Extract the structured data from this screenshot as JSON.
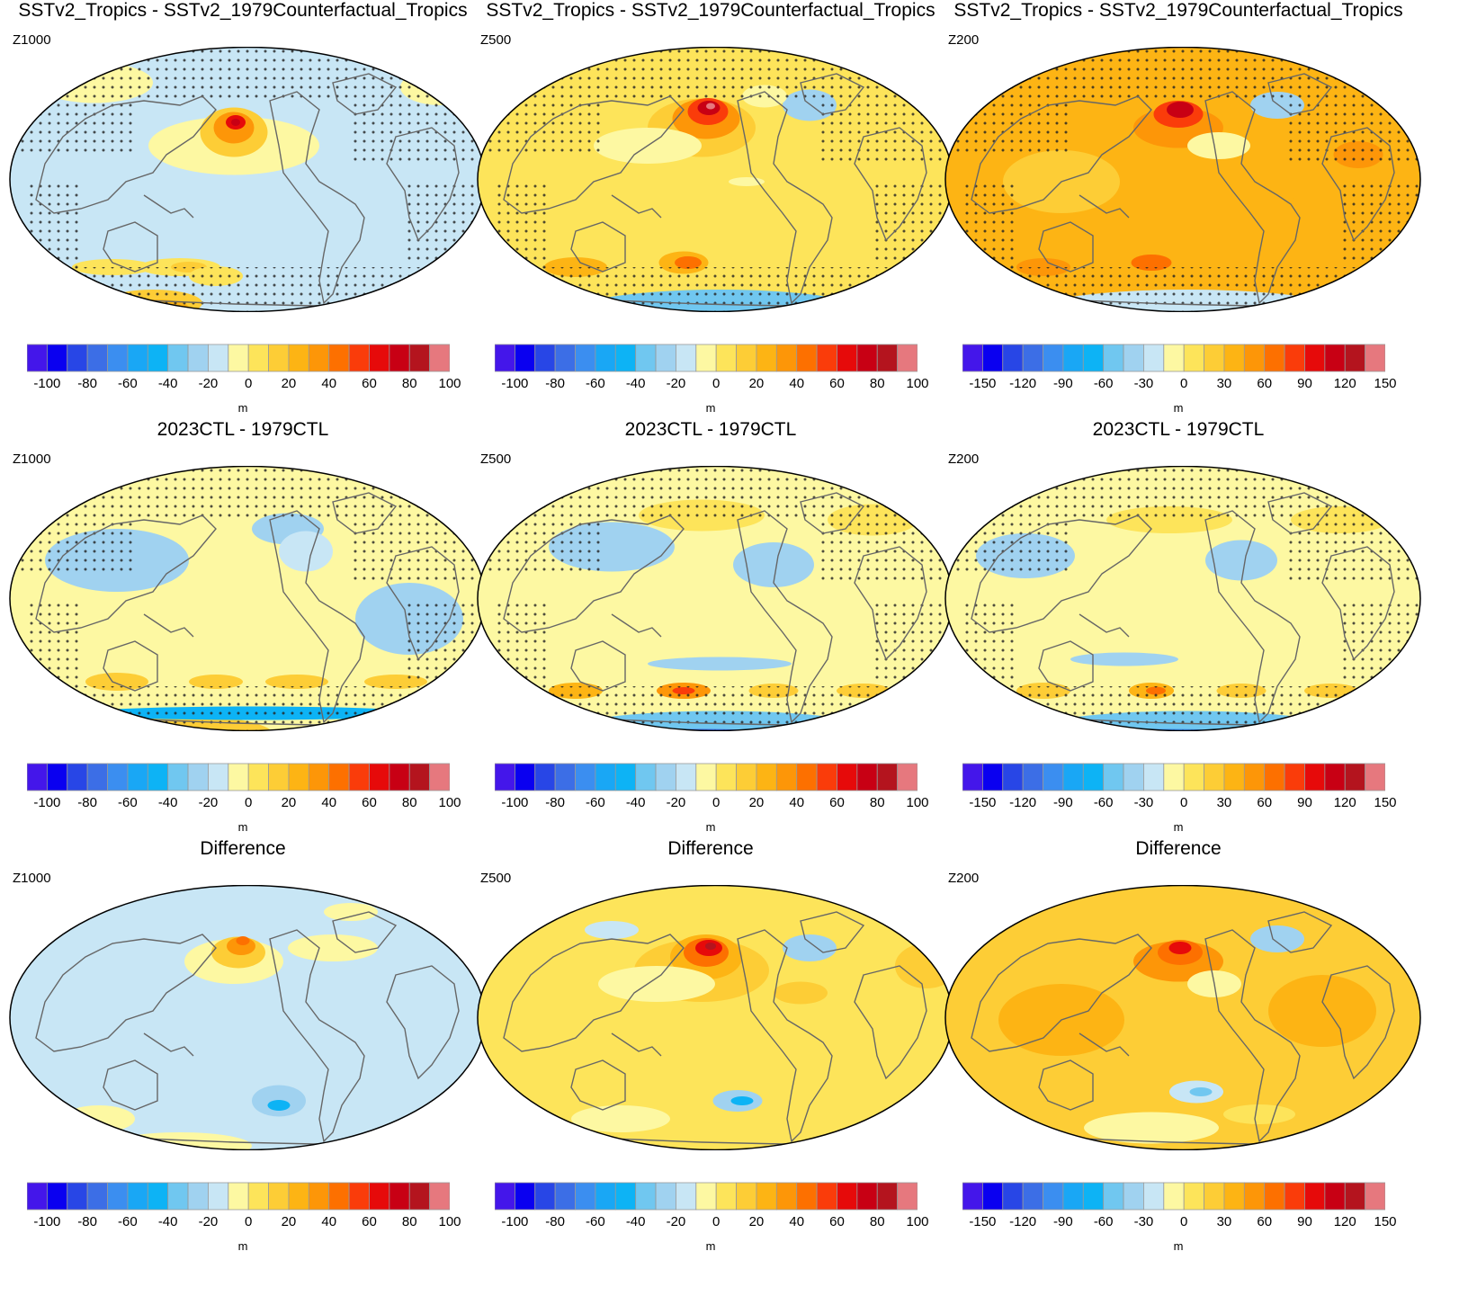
{
  "figure": {
    "panels": [
      {
        "title": "SSTv2_Tropics - SSTv2_1979Counterfactual_Tropics",
        "level": "Z1000",
        "scale": "z100",
        "pattern": "sst_z1000",
        "stipple": true
      },
      {
        "title": "SSTv2_Tropics - SSTv2_1979Counterfactual_Tropics",
        "level": "Z500",
        "scale": "z100",
        "pattern": "sst_z500",
        "stipple": true
      },
      {
        "title": "SSTv2_Tropics - SSTv2_1979Counterfactual_Tropics",
        "level": "Z200",
        "scale": "z150",
        "pattern": "sst_z200",
        "stipple": true
      },
      {
        "title": "2023CTL - 1979CTL",
        "level": "Z1000",
        "scale": "z100",
        "pattern": "ctl_z1000",
        "stipple": true
      },
      {
        "title": "2023CTL - 1979CTL",
        "level": "Z500",
        "scale": "z100",
        "pattern": "ctl_z500",
        "stipple": true
      },
      {
        "title": "2023CTL - 1979CTL",
        "level": "Z200",
        "scale": "z150",
        "pattern": "ctl_z200",
        "stipple": true
      },
      {
        "title": "Difference",
        "level": "Z1000",
        "scale": "z100",
        "pattern": "diff_z1000",
        "stipple": false
      },
      {
        "title": "Difference",
        "level": "Z500",
        "scale": "z100",
        "pattern": "diff_z500",
        "stipple": false
      },
      {
        "title": "Difference",
        "level": "Z200",
        "scale": "z150",
        "pattern": "diff_z200",
        "stipple": false
      }
    ],
    "colorbars": {
      "units": "m",
      "colors": [
        "#4416ea",
        "#0a00f0",
        "#2846e6",
        "#3c6ee6",
        "#3b8ef0",
        "#19a7f5",
        "#0db3f5",
        "#70c7f0",
        "#a0d2f0",
        "#c8e6f5",
        "#fdf8a2",
        "#fde45a",
        "#fdcd36",
        "#fdb414",
        "#fd9608",
        "#fd7000",
        "#fa3c0a",
        "#e60a0a",
        "#c80014",
        "#b4141e",
        "#e6787e"
      ],
      "z100": [
        "-100",
        "-80",
        "-60",
        "-40",
        "-20",
        "0",
        "20",
        "40",
        "60",
        "80",
        "100"
      ],
      "z150": [
        "-150",
        "-120",
        "-90",
        "-60",
        "-30",
        "0",
        "30",
        "60",
        "90",
        "120",
        "150"
      ]
    }
  }
}
